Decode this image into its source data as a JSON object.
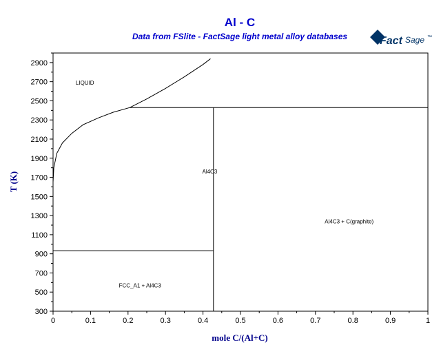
{
  "colors": {
    "title": "#0000cc",
    "axis_label": "#00008b",
    "lines": "#000000",
    "logo": "#003366"
  },
  "logo": {
    "brand": "Fact",
    "brand_suffix": "Sage",
    "mark": "™"
  },
  "chart_data": {
    "type": "line",
    "title": "Al - C",
    "subtitle": "Data from FSlite - FactSage light metal alloy databases",
    "xlabel": "mole C/(Al+C)",
    "ylabel": "T (K)",
    "xlim": [
      0,
      1
    ],
    "ylim": [
      300,
      3000
    ],
    "x_ticks": [
      0,
      0.1,
      0.2,
      0.3,
      0.4,
      0.5,
      0.6,
      0.7,
      0.8,
      0.9,
      1
    ],
    "x_tick_labels": [
      "0",
      "0.1",
      "0.2",
      "0.3",
      "0.4",
      "0.5",
      "0.6",
      "0.7",
      "0.8",
      "0.9",
      "1"
    ],
    "y_ticks": [
      300,
      500,
      700,
      900,
      1100,
      1300,
      1500,
      1700,
      1900,
      2100,
      2300,
      2500,
      2700,
      2900
    ],
    "y_tick_labels": [
      "300",
      "500",
      "700",
      "900",
      "1100",
      "1300",
      "1500",
      "1700",
      "1900",
      "2100",
      "2300",
      "2500",
      "2700",
      "2900"
    ],
    "grid": false,
    "series": [
      {
        "values": [
          [
            0,
            1650
          ],
          [
            0.002,
            1800
          ],
          [
            0.01,
            1950
          ],
          [
            0.025,
            2060
          ],
          [
            0.05,
            2160
          ],
          [
            0.08,
            2250
          ],
          [
            0.12,
            2320
          ],
          [
            0.16,
            2380
          ],
          [
            0.205,
            2430
          ]
        ]
      },
      {
        "values": [
          [
            0.205,
            2430
          ],
          [
            0.25,
            2520
          ],
          [
            0.3,
            2630
          ],
          [
            0.35,
            2750
          ],
          [
            0.4,
            2880
          ],
          [
            0.42,
            2940
          ]
        ]
      },
      {
        "values": [
          [
            0.205,
            2430
          ],
          [
            1,
            2430
          ]
        ]
      },
      {
        "values": [
          [
            0.428,
            300
          ],
          [
            0.428,
            2430
          ]
        ]
      },
      {
        "values": [
          [
            0,
            933
          ],
          [
            0.428,
            933
          ]
        ]
      }
    ],
    "annotations": [
      {
        "text": "LIQUID",
        "x": 0.085,
        "y": 2690
      },
      {
        "text": "Al4C3",
        "x": 0.418,
        "y": 1760
      },
      {
        "text": "Al4C3 + C(graphite)",
        "x": 0.79,
        "y": 1240
      },
      {
        "text": "FCC_A1 + Al4C3",
        "x": 0.232,
        "y": 570
      }
    ]
  }
}
